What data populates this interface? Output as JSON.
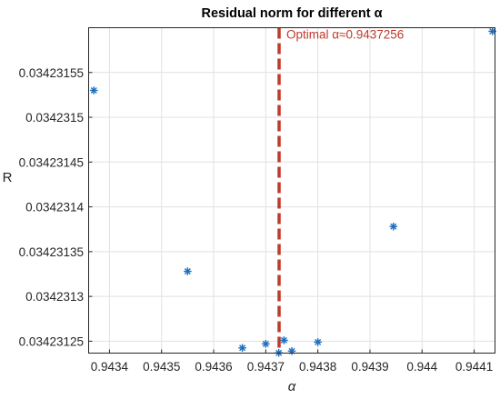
{
  "chart_data": {
    "type": "scatter",
    "title": "Residual norm for different α",
    "xlabel": "α",
    "ylabel": "R",
    "xlim": [
      0.94336,
      0.94414
    ],
    "ylim": [
      0.0342312367,
      0.0342316
    ],
    "xticks": [
      0.9434,
      0.9435,
      0.9436,
      0.9437,
      0.9438,
      0.9439,
      0.944,
      0.9441
    ],
    "xtick_labels": [
      "0.9434",
      "0.9435",
      "0.9436",
      "0.9437",
      "0.9438",
      "0.9439",
      "0.944",
      "0.9441"
    ],
    "yticks": [
      0.03423125,
      0.0342313,
      0.03423135,
      0.0342314,
      0.03423145,
      0.0342315,
      0.03423155
    ],
    "ytick_labels": [
      "0.03423125",
      "0.0342313",
      "0.03423135",
      "0.0342314",
      "0.03423145",
      "0.0342315",
      "0.03423155"
    ],
    "grid": true,
    "points": [
      {
        "x": 0.94337,
        "y": 0.03423153
      },
      {
        "x": 0.94355,
        "y": 0.034231328
      },
      {
        "x": 0.943655,
        "y": 0.0342312425
      },
      {
        "x": 0.9437,
        "y": 0.034231247
      },
      {
        "x": 0.943725,
        "y": 0.034231237
      },
      {
        "x": 0.943735,
        "y": 0.034231251
      },
      {
        "x": 0.94375,
        "y": 0.034231239
      },
      {
        "x": 0.9438,
        "y": 0.034231249
      },
      {
        "x": 0.943945,
        "y": 0.034231378
      },
      {
        "x": 0.944135,
        "y": 0.034231596
      }
    ],
    "vline": {
      "x": 0.9437256,
      "label": "Optimal α≈0.9437256"
    },
    "colors": {
      "marker": "#1f6fc0",
      "vline": "#c0392b",
      "grid": "#e1e1e1",
      "axis": "#262626"
    }
  }
}
